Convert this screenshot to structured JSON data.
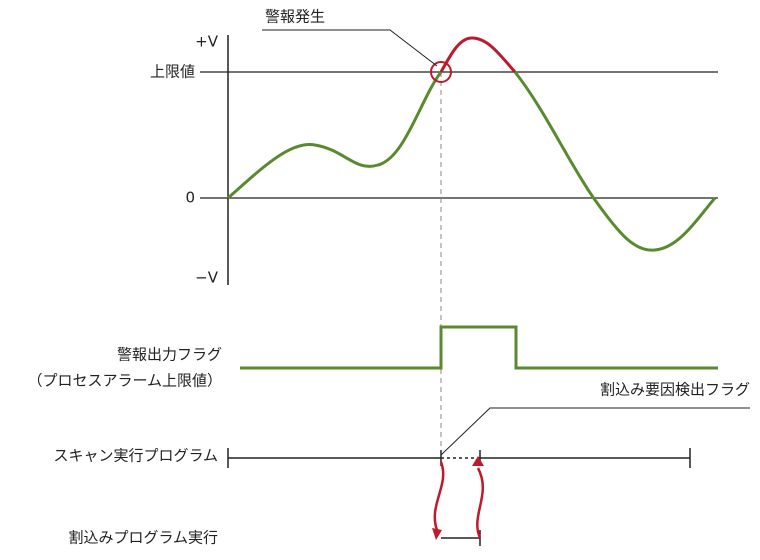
{
  "labels": {
    "alarm_event": "警報発生",
    "plus_v": "+V",
    "upper_limit": "上限値",
    "zero": "0",
    "minus_v": "−V",
    "alarm_flag": "警報出力フラグ",
    "alarm_flag_sub": "（プロセスアラーム上限値）",
    "interrupt_flag": "割込み要因検出フラグ",
    "scan_program": "スキャン実行プログラム",
    "interrupt_program": "割込みプログラム実行"
  }
}
